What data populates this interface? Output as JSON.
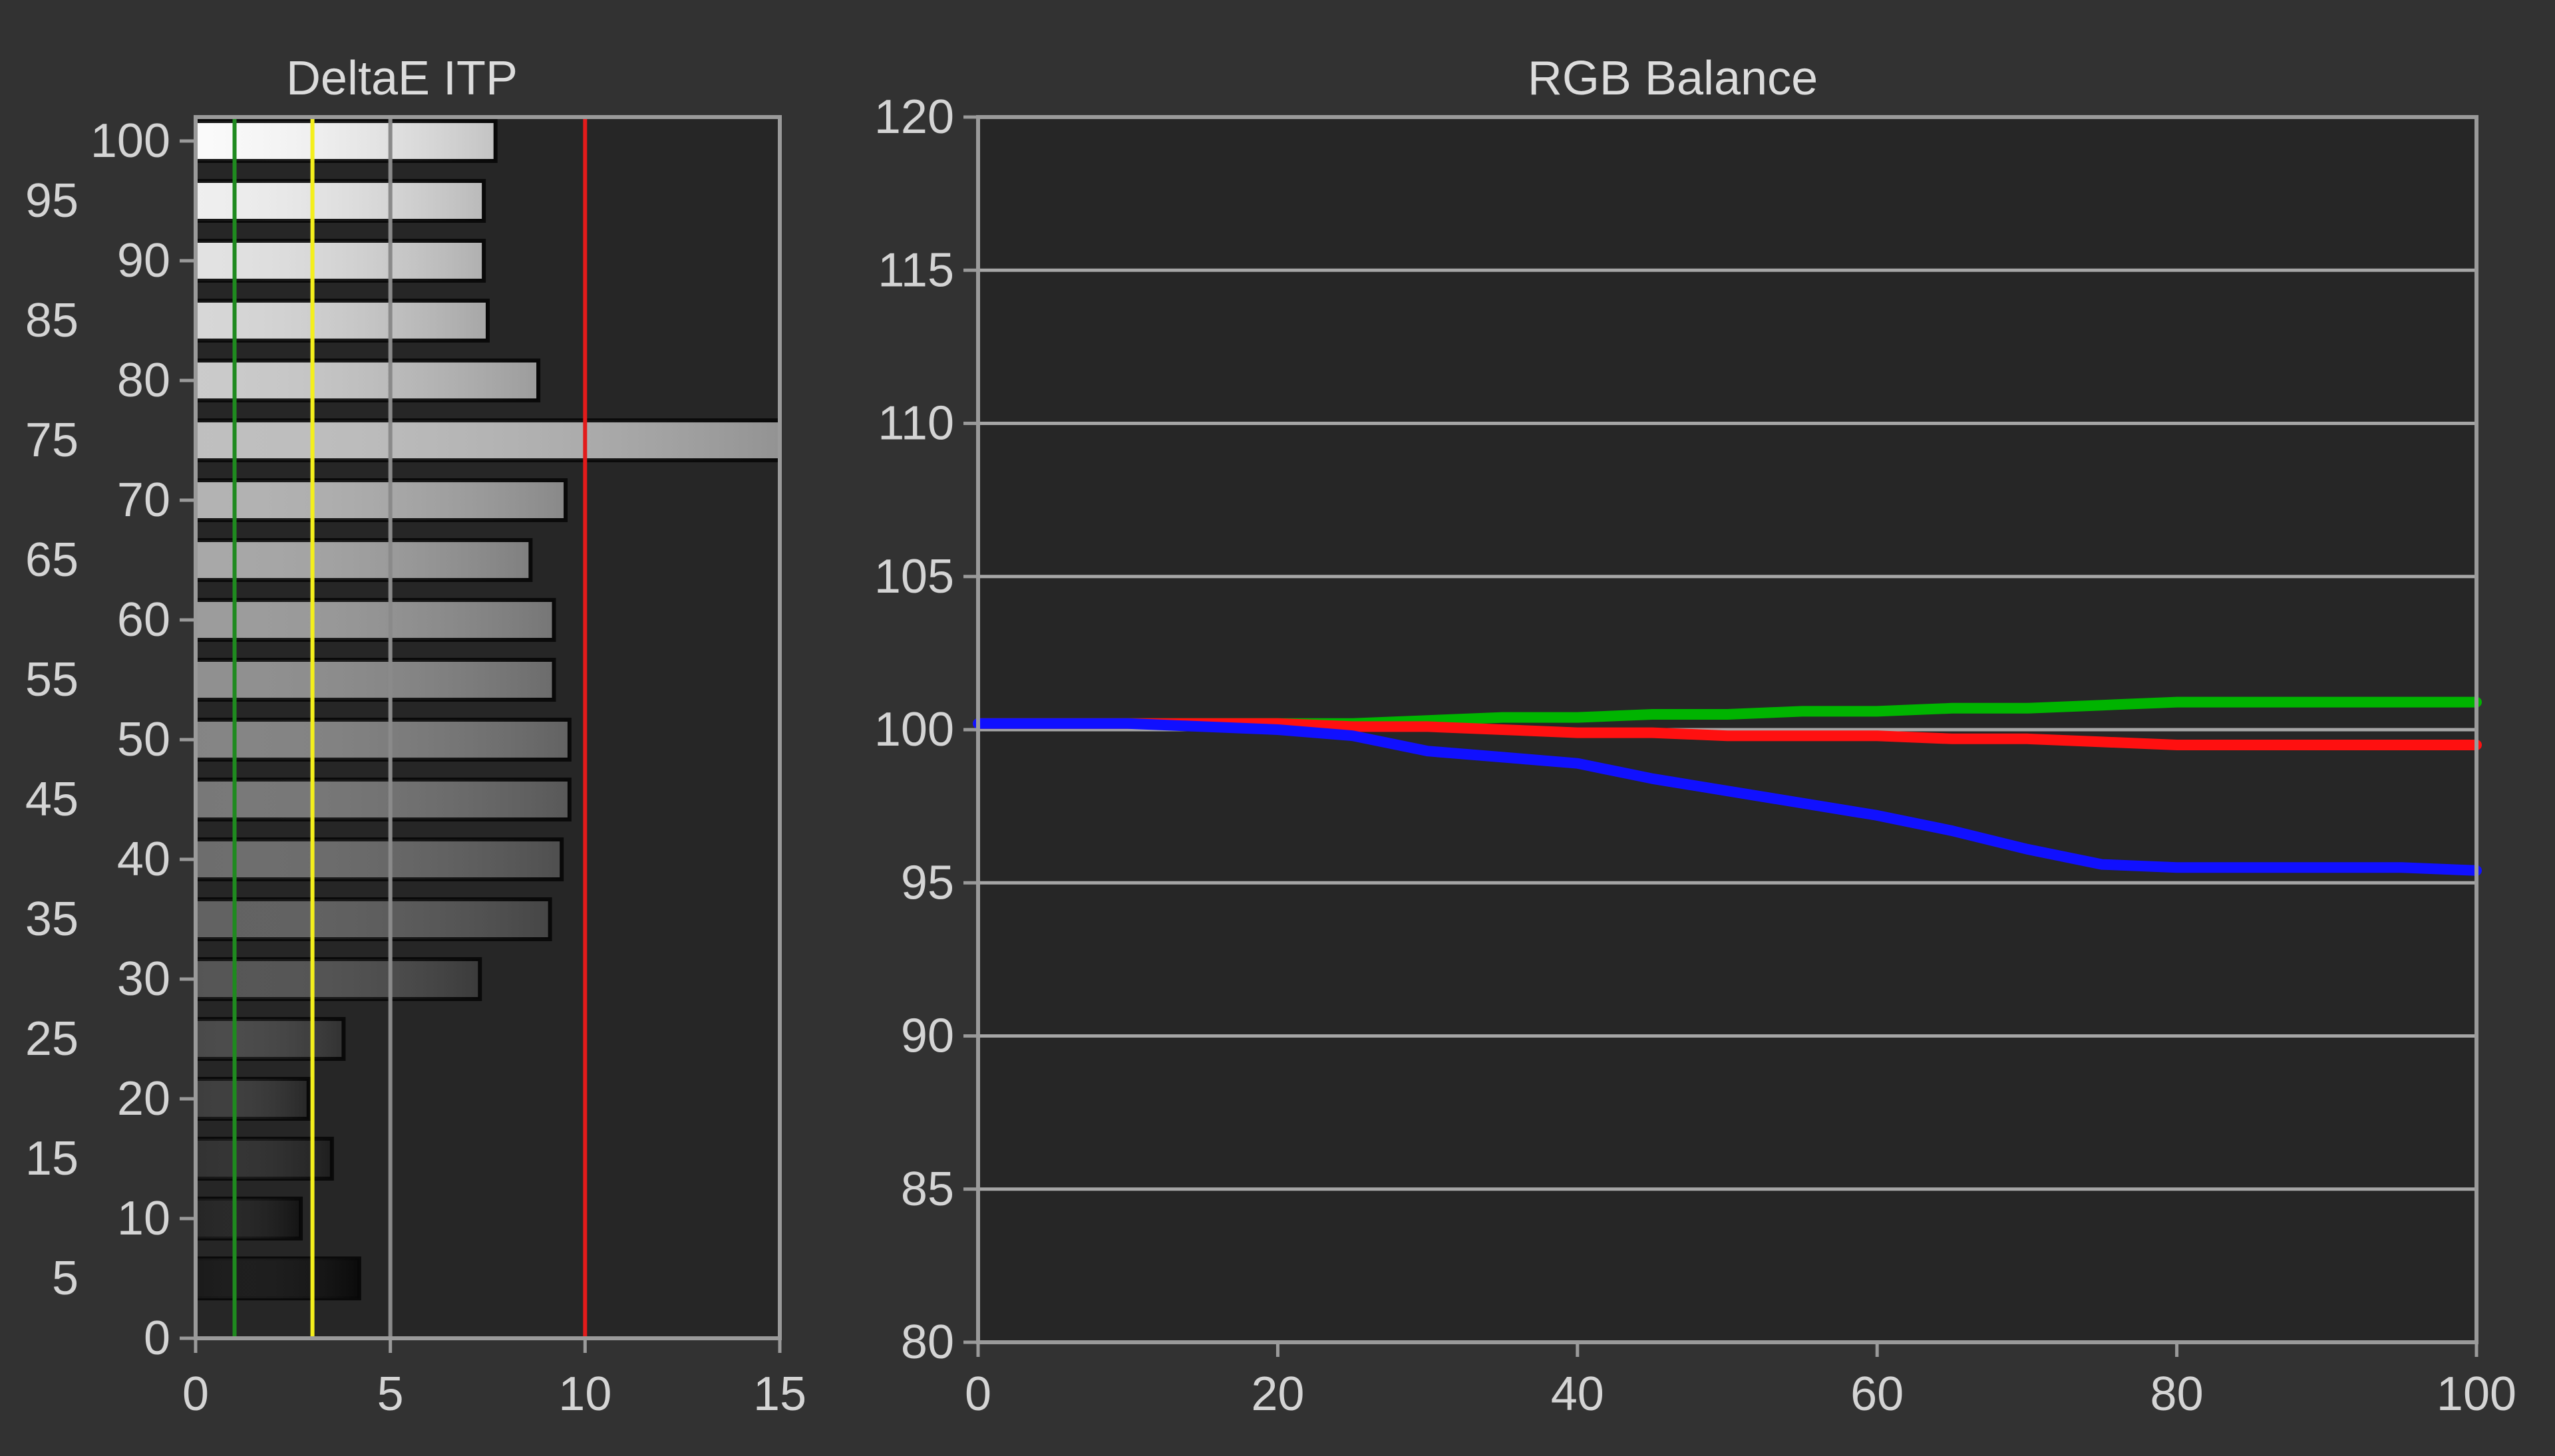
{
  "chart_data": [
    {
      "type": "bar",
      "orientation": "horizontal",
      "title": "DeltaE ITP",
      "xlabel": "",
      "ylabel": "",
      "xlim": [
        0,
        15
      ],
      "ylim": [
        0,
        102
      ],
      "x_ticks": [
        "0",
        "5",
        "10",
        "15"
      ],
      "y_ticks": [
        "0",
        "5",
        "10",
        "15",
        "20",
        "25",
        "30",
        "35",
        "40",
        "45",
        "50",
        "55",
        "60",
        "65",
        "70",
        "75",
        "80",
        "85",
        "90",
        "95",
        "100"
      ],
      "categories": [
        5,
        10,
        15,
        20,
        25,
        30,
        35,
        40,
        45,
        50,
        55,
        60,
        65,
        70,
        75,
        80,
        85,
        90,
        95,
        100
      ],
      "values": [
        4.2,
        2.7,
        3.5,
        2.9,
        3.8,
        7.3,
        9.1,
        9.4,
        9.6,
        9.6,
        9.2,
        9.2,
        8.6,
        9.5,
        15.0,
        8.8,
        7.5,
        7.4,
        7.4,
        7.7
      ],
      "reference_lines": [
        {
          "x": 1,
          "color": "#1f8a1f"
        },
        {
          "x": 3,
          "color": "#f4ef1c"
        },
        {
          "x": 5,
          "color": "#8a8a8a"
        },
        {
          "x": 10,
          "color": "#e21b1b"
        }
      ],
      "grid": false
    },
    {
      "type": "line",
      "title": "RGB Balance",
      "xlabel": "",
      "ylabel": "",
      "xlim": [
        0,
        100
      ],
      "ylim": [
        80,
        120
      ],
      "x_ticks": [
        "0",
        "20",
        "40",
        "60",
        "80",
        "100"
      ],
      "y_ticks": [
        "80",
        "85",
        "90",
        "95",
        "100",
        "105",
        "110",
        "115",
        "120"
      ],
      "grid": true,
      "x": [
        0,
        5,
        10,
        15,
        20,
        25,
        30,
        35,
        40,
        45,
        50,
        55,
        60,
        65,
        70,
        75,
        80,
        85,
        90,
        95,
        100
      ],
      "series": [
        {
          "color": "#00b400",
          "values": [
            100.2,
            100.2,
            100.2,
            100.2,
            100.2,
            100.2,
            100.3,
            100.4,
            100.4,
            100.5,
            100.5,
            100.6,
            100.6,
            100.7,
            100.7,
            100.8,
            100.9,
            100.9,
            100.9,
            100.9,
            100.9
          ]
        },
        {
          "color": "#ff1010",
          "values": [
            100.2,
            100.2,
            100.2,
            100.2,
            100.2,
            100.1,
            100.1,
            100.0,
            99.9,
            99.9,
            99.8,
            99.8,
            99.8,
            99.7,
            99.7,
            99.6,
            99.5,
            99.5,
            99.5,
            99.5,
            99.5
          ]
        },
        {
          "color": "#1010ff",
          "values": [
            100.2,
            100.2,
            100.2,
            100.1,
            100.0,
            99.8,
            99.3,
            99.1,
            98.9,
            98.4,
            98.0,
            97.6,
            97.2,
            96.7,
            96.1,
            95.6,
            95.5,
            95.5,
            95.5,
            95.5,
            95.4
          ]
        }
      ]
    }
  ]
}
